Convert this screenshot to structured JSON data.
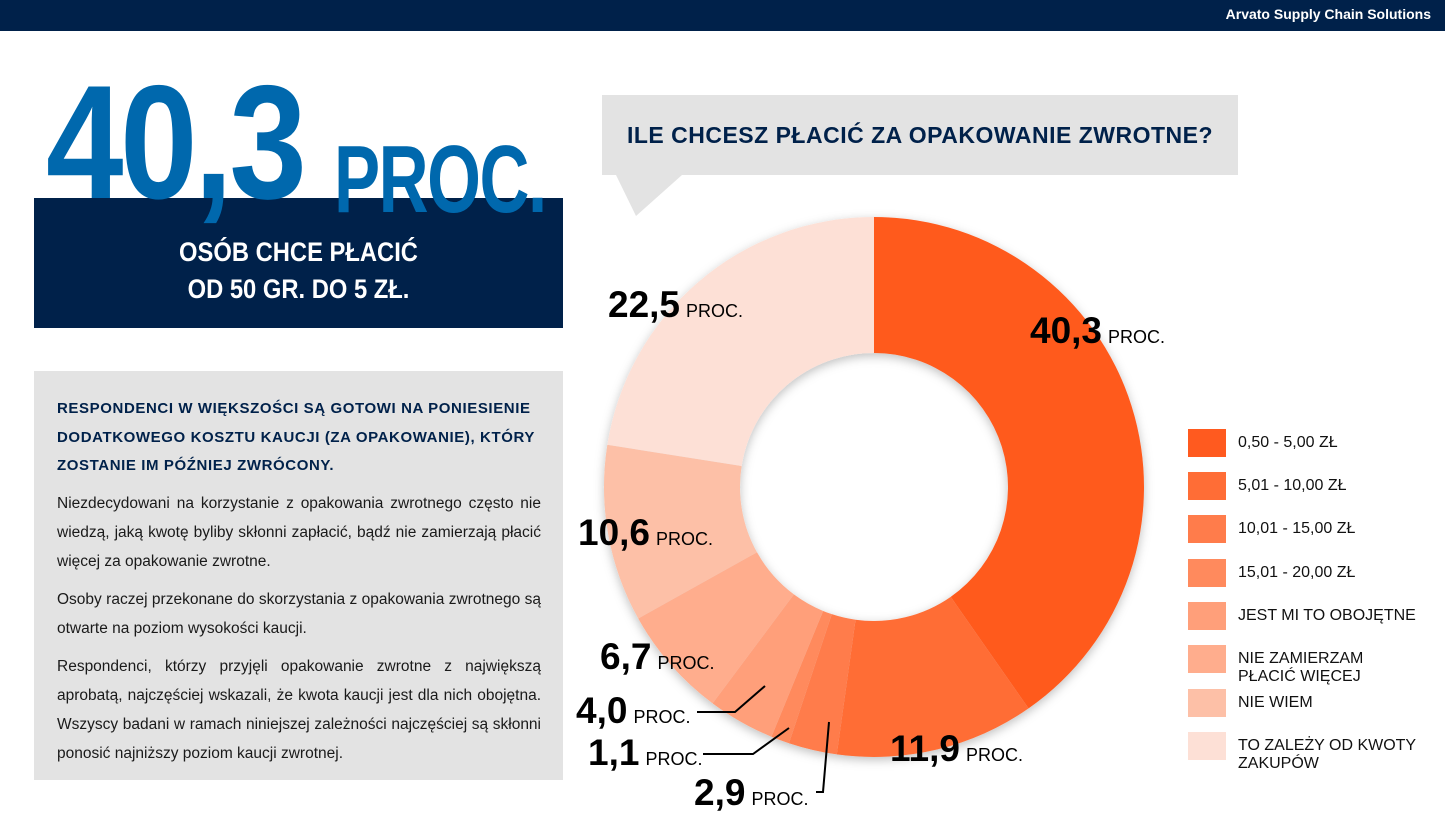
{
  "header": {
    "brand": "Arvato Supply Chain Solutions"
  },
  "headline": {
    "value": "40,3",
    "unit": "PROC.",
    "line1": "OSÓB CHCE PŁACIĆ",
    "line2": "OD 50 GR. DO 5 ZŁ."
  },
  "info": {
    "heading": "RESPONDENCI W WIĘKSZOŚCI SĄ GOTOWI NA PONIESIENIE DODATKOWEGO KOSZTU KAUCJI (ZA OPAKOWANIE), KTÓRY ZOSTANIE IM PÓŹNIEJ ZWRÓCONY.",
    "paragraphs": [
      "Niezdecydowani na korzystanie z opakowania zwrotnego często nie wiedzą, jaką kwotę byliby skłonni zapłacić, bądź nie zamierzają płacić więcej za opakowanie zwrotne.",
      "Osoby raczej przekonane do skorzystania z opakowania zwrotnego są otwarte na poziom wysokości kaucji.",
      "Respondenci, którzy przyjęli opakowanie zwrotne z największą aprobatą, najczęściej wskazali, że kwota kaucji jest dla nich obojętna. Wszyscy badani w ramach niniejszej zależności najczęściej są skłonni ponosić najniższy poziom kaucji zwrotnej."
    ]
  },
  "chart_data": {
    "type": "pie",
    "variant": "donut",
    "title": "ILE CHCESZ PŁACIĆ ZA OPAKOWANIE ZWROTNE?",
    "unit_label": "PROC.",
    "legend_position": "right",
    "categories": [
      "0,50 - 5,00 ZŁ",
      "5,01 - 10,00 ZŁ",
      "10,01 - 15,00 ZŁ",
      "15,01 - 20,00 ZŁ",
      "JEST MI TO OBOJĘTNE",
      "NIE ZAMIERZAM PŁACIĆ WIĘCEJ",
      "NIE WIEM",
      "TO ZALEŻY OD KWOTY ZAKUPÓW"
    ],
    "values": [
      40.3,
      11.9,
      2.9,
      1.1,
      4.0,
      6.7,
      10.6,
      22.5
    ],
    "data_labels": [
      "40,3",
      "11,9",
      "2,9",
      "1,1",
      "4,0",
      "6,7",
      "10,6",
      "22,5"
    ],
    "colors": [
      "#ff5a1f",
      "#ff6d36",
      "#ff7c4b",
      "#ff8a5d",
      "#ff9f7a",
      "#ffad8d",
      "#fdc0a7",
      "#fde0d6"
    ]
  }
}
